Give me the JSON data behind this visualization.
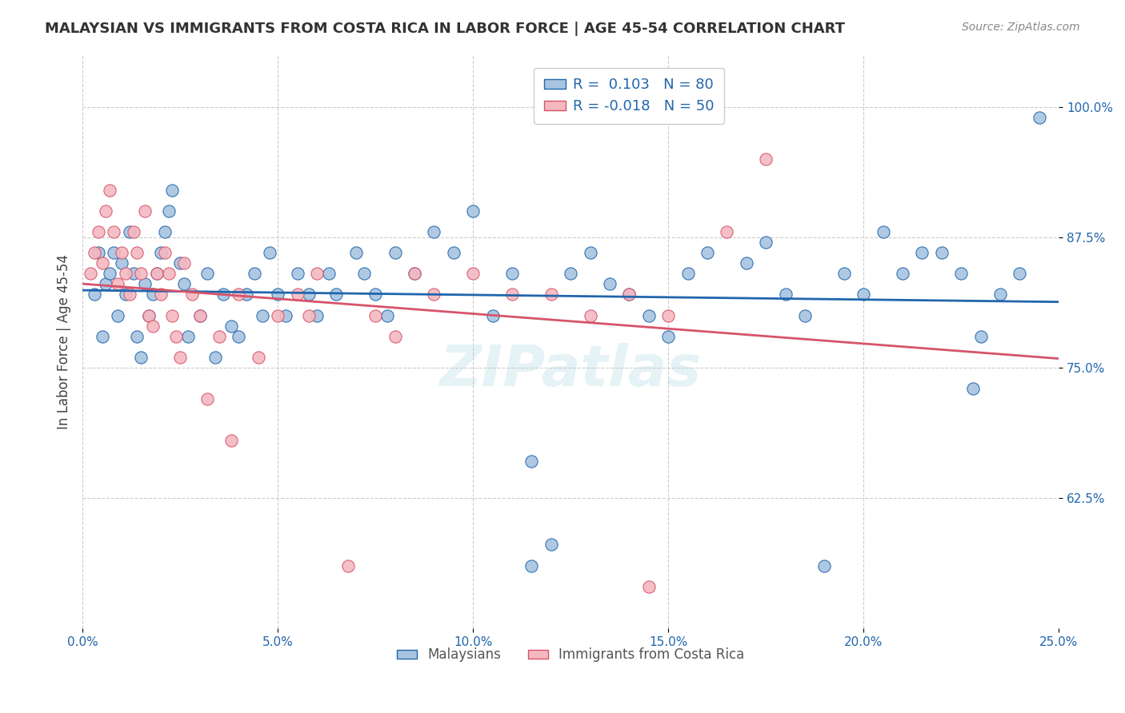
{
  "title": "MALAYSIAN VS IMMIGRANTS FROM COSTA RICA IN LABOR FORCE | AGE 45-54 CORRELATION CHART",
  "source": "Source: ZipAtlas.com",
  "xlabel_bottom": "",
  "ylabel": "In Labor Force | Age 45-54",
  "x_tick_labels": [
    "0.0%",
    "5.0%",
    "10.0%",
    "15.0%",
    "20.0%",
    "25.0%"
  ],
  "x_tick_vals": [
    0.0,
    5.0,
    10.0,
    15.0,
    20.0,
    25.0
  ],
  "y_tick_labels": [
    "62.5%",
    "75.0%",
    "87.5%",
    "100.0%"
  ],
  "y_tick_vals": [
    62.5,
    75.0,
    87.5,
    100.0
  ],
  "xlim": [
    0.0,
    25.0
  ],
  "ylim": [
    50.0,
    105.0
  ],
  "blue_R": 0.103,
  "blue_N": 80,
  "pink_R": -0.018,
  "pink_N": 50,
  "blue_color": "#a8c4e0",
  "blue_line_color": "#2166ac",
  "pink_color": "#f4b8c1",
  "pink_line_color": "#d6546a",
  "legend_label_blue": "Malaysians",
  "legend_label_pink": "Immigrants from Costa Rica",
  "watermark": "ZIPatlas",
  "blue_points_x": [
    0.3,
    0.4,
    0.5,
    0.6,
    0.7,
    0.8,
    0.9,
    1.0,
    1.1,
    1.2,
    1.3,
    1.4,
    1.5,
    1.6,
    1.7,
    1.8,
    1.9,
    2.0,
    2.1,
    2.2,
    2.3,
    2.5,
    2.6,
    2.7,
    3.0,
    3.2,
    3.4,
    3.6,
    3.8,
    4.0,
    4.2,
    4.4,
    4.6,
    4.8,
    5.0,
    5.2,
    5.5,
    5.8,
    6.0,
    6.3,
    6.5,
    7.0,
    7.2,
    7.5,
    7.8,
    8.0,
    8.5,
    9.0,
    9.5,
    10.0,
    10.5,
    11.0,
    11.5,
    12.0,
    12.5,
    13.0,
    13.5,
    14.0,
    14.5,
    15.0,
    15.5,
    16.0,
    17.0,
    17.5,
    18.0,
    18.5,
    19.0,
    19.5,
    20.0,
    20.5,
    21.0,
    21.5,
    22.0,
    22.5,
    23.0,
    23.5,
    24.0,
    24.5,
    22.8,
    11.5
  ],
  "blue_points_y": [
    82.0,
    86.0,
    78.0,
    83.0,
    84.0,
    86.0,
    80.0,
    85.0,
    82.0,
    88.0,
    84.0,
    78.0,
    76.0,
    83.0,
    80.0,
    82.0,
    84.0,
    86.0,
    88.0,
    90.0,
    92.0,
    85.0,
    83.0,
    78.0,
    80.0,
    84.0,
    76.0,
    82.0,
    79.0,
    78.0,
    82.0,
    84.0,
    80.0,
    86.0,
    82.0,
    80.0,
    84.0,
    82.0,
    80.0,
    84.0,
    82.0,
    86.0,
    84.0,
    82.0,
    80.0,
    86.0,
    84.0,
    88.0,
    86.0,
    90.0,
    80.0,
    84.0,
    66.0,
    58.0,
    84.0,
    86.0,
    83.0,
    82.0,
    80.0,
    78.0,
    84.0,
    86.0,
    85.0,
    87.0,
    82.0,
    80.0,
    56.0,
    84.0,
    82.0,
    88.0,
    84.0,
    86.0,
    86.0,
    84.0,
    78.0,
    82.0,
    84.0,
    99.0,
    73.0,
    56.0
  ],
  "pink_points_x": [
    0.2,
    0.3,
    0.4,
    0.5,
    0.6,
    0.7,
    0.8,
    0.9,
    1.0,
    1.1,
    1.2,
    1.3,
    1.4,
    1.5,
    1.6,
    1.7,
    1.9,
    2.0,
    2.1,
    2.2,
    2.4,
    2.6,
    2.8,
    3.0,
    3.5,
    4.0,
    5.0,
    5.5,
    6.0,
    7.5,
    8.0,
    9.0,
    10.0,
    11.0,
    12.0,
    13.0,
    14.0,
    15.0,
    16.5,
    17.5,
    4.5,
    3.2,
    5.8,
    1.8,
    2.3,
    2.5,
    3.8,
    6.8,
    8.5,
    14.5
  ],
  "pink_points_y": [
    84.0,
    86.0,
    88.0,
    85.0,
    90.0,
    92.0,
    88.0,
    83.0,
    86.0,
    84.0,
    82.0,
    88.0,
    86.0,
    84.0,
    90.0,
    80.0,
    84.0,
    82.0,
    86.0,
    84.0,
    78.0,
    85.0,
    82.0,
    80.0,
    78.0,
    82.0,
    80.0,
    82.0,
    84.0,
    80.0,
    78.0,
    82.0,
    84.0,
    82.0,
    82.0,
    80.0,
    82.0,
    80.0,
    88.0,
    95.0,
    76.0,
    72.0,
    80.0,
    79.0,
    80.0,
    76.0,
    68.0,
    56.0,
    84.0,
    54.0
  ]
}
